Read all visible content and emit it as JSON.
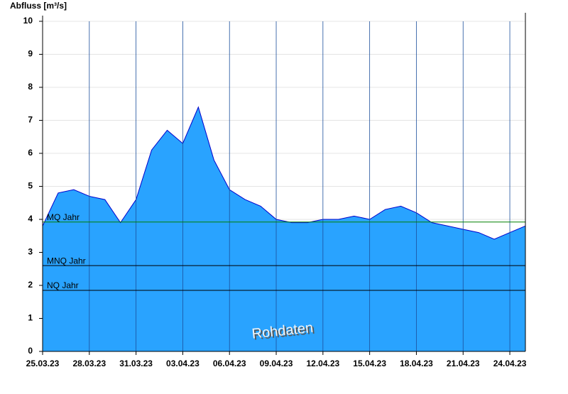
{
  "chart_data": {
    "type": "area",
    "y_label": "Abfluss [m³/s]",
    "annotation": "Rohdaten",
    "x": [
      "25.03.23",
      "26.03.23",
      "27.03.23",
      "28.03.23",
      "29.03.23",
      "30.03.23",
      "31.03.23",
      "01.04.23",
      "02.04.23",
      "03.04.23",
      "04.04.23",
      "05.04.23",
      "06.04.23",
      "07.04.23",
      "08.04.23",
      "09.04.23",
      "10.04.23",
      "11.04.23",
      "12.04.23",
      "13.04.23",
      "14.04.23",
      "15.04.23",
      "16.04.23",
      "17.04.23",
      "18.04.23",
      "19.04.23",
      "20.04.23",
      "21.04.23",
      "22.04.23",
      "23.04.23",
      "24.04.23",
      "25.04.23"
    ],
    "series": [
      {
        "name": "Abfluss",
        "color": "#0000cc",
        "fill": "#29a3ff",
        "values": [
          3.8,
          4.8,
          4.9,
          4.7,
          4.6,
          3.9,
          4.6,
          6.1,
          6.7,
          6.3,
          7.4,
          5.8,
          4.9,
          4.6,
          4.4,
          4.0,
          3.9,
          3.9,
          4.0,
          4.0,
          4.1,
          4.0,
          4.3,
          4.4,
          4.2,
          3.9,
          3.8,
          3.7,
          3.6,
          3.4,
          3.6,
          3.8
        ]
      }
    ],
    "xticks": [
      "25.03.23",
      "28.03.23",
      "31.03.23",
      "03.04.23",
      "06.04.23",
      "09.04.23",
      "12.04.23",
      "15.04.23",
      "18.04.23",
      "21.04.23",
      "24.04.23"
    ],
    "ylim": [
      0,
      10
    ],
    "yticks": [
      0,
      1,
      2,
      3,
      4,
      5,
      6,
      7,
      8,
      9,
      10
    ],
    "grid": true,
    "reference_lines": [
      {
        "label": "MQ Jahr",
        "value": 3.92,
        "color": "#008000"
      },
      {
        "label": "MNQ Jahr",
        "value": 2.6,
        "color": "#000000"
      },
      {
        "label": "NQ Jahr",
        "value": 1.85,
        "color": "#000000"
      }
    ]
  }
}
